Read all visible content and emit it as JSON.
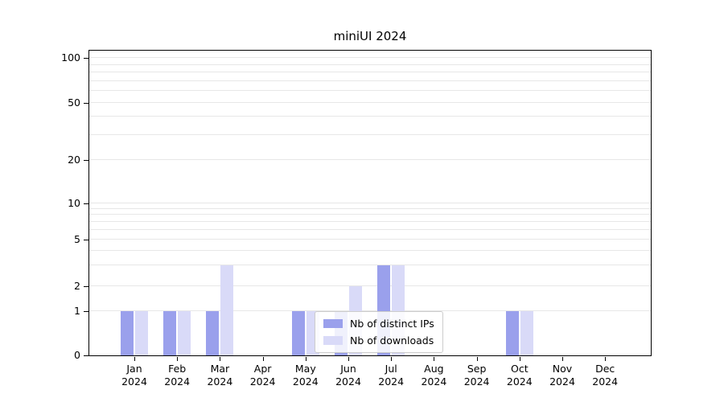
{
  "title": "miniUI 2024",
  "year": "2024",
  "months": [
    "Jan",
    "Feb",
    "Mar",
    "Apr",
    "May",
    "Jun",
    "Jul",
    "Aug",
    "Sep",
    "Oct",
    "Nov",
    "Dec"
  ],
  "chart_data": {
    "type": "bar",
    "title": "miniUI 2024",
    "categories": [
      "Jan 2024",
      "Feb 2024",
      "Mar 2024",
      "Apr 2024",
      "May 2024",
      "Jun 2024",
      "Jul 2024",
      "Aug 2024",
      "Sep 2024",
      "Oct 2024",
      "Nov 2024",
      "Dec 2024"
    ],
    "series": [
      {
        "name": "Nb of distinct IPs",
        "color": "#9aa0ec",
        "values": [
          1,
          1,
          1,
          0,
          1,
          1,
          3,
          0,
          0,
          1,
          0,
          0
        ]
      },
      {
        "name": "Nb of downloads",
        "color": "#d9daf8",
        "values": [
          1,
          1,
          3,
          0,
          1,
          2,
          3,
          0,
          0,
          1,
          0,
          0
        ]
      }
    ],
    "xlabel": "",
    "ylabel": "",
    "yscale": "symlog",
    "ylim": [
      0,
      100
    ],
    "yticks": [
      0,
      1,
      2,
      5,
      10,
      20,
      50,
      100
    ],
    "grid": "horizontal minor log gridlines",
    "legend_position": "lower center inside plot"
  },
  "y_scale_anchors": [
    {
      "v": 0,
      "f": 0.0
    },
    {
      "v": 1,
      "f": 0.144
    },
    {
      "v": 2,
      "f": 0.226
    },
    {
      "v": 5,
      "f": 0.381
    },
    {
      "v": 10,
      "f": 0.499
    },
    {
      "v": 20,
      "f": 0.64
    },
    {
      "v": 50,
      "f": 0.829
    },
    {
      "v": 100,
      "f": 0.976
    }
  ],
  "grid_values": [
    1,
    2,
    3,
    4,
    5,
    6,
    7,
    8,
    9,
    10,
    20,
    30,
    40,
    50,
    60,
    70,
    80,
    90,
    100
  ]
}
